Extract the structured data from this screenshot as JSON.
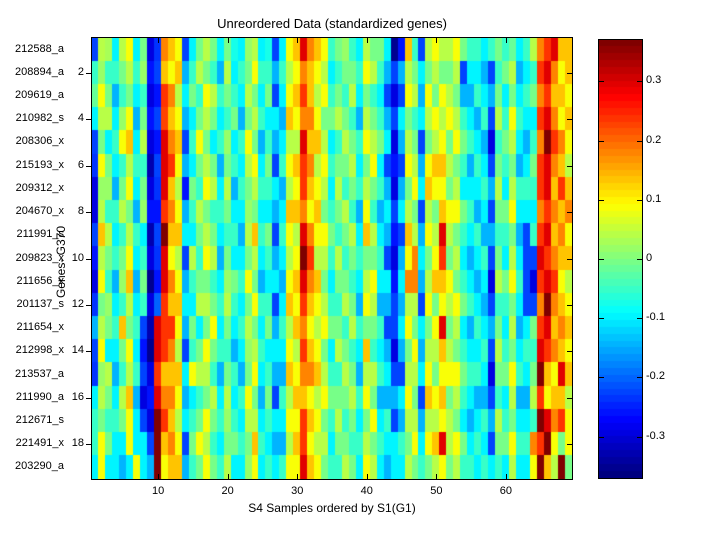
{
  "figure": {
    "background": "#ffffff"
  },
  "chart_data": {
    "type": "heatmap",
    "title": "Unreordered Data (standardized genes)",
    "xlabel": "S4 Samples ordered by S1(G1)",
    "ylabel": "Genes- G370",
    "colormap": "jet",
    "clim": [
      -0.37,
      0.37
    ],
    "n_rows": 19,
    "n_cols": 69,
    "x_ticks": [
      10,
      20,
      30,
      40,
      50,
      60
    ],
    "y_ticks": [
      2,
      4,
      6,
      8,
      10,
      12,
      14,
      16,
      18
    ],
    "colorbar_ticks": [
      0.3,
      0.2,
      0.1,
      0,
      -0.1,
      -0.2,
      -0.3
    ],
    "row_labels": [
      "212588_a",
      "208894_a",
      "209619_a",
      "210982_s",
      "208306_x",
      "215193_x",
      "209312_x",
      "204670_x",
      "211991_s",
      "209823_x",
      "211656_x",
      "201137_s",
      "211654_x",
      "212998_x",
      "213537_a",
      "211990_a",
      "212671_s",
      "221491_x",
      "203290_a"
    ],
    "values": [
      [
        -0.22,
        0.04,
        0.03,
        -0.1,
        0.04,
        0.09,
        -0.1,
        0,
        -0.3,
        -0.24,
        0.18,
        0.13,
        0.09,
        -0.22,
        -0.1,
        0,
        0.04,
        0,
        -0.1,
        0,
        -0.08,
        -0.1,
        0.02,
        0.04,
        -0.1,
        -0.08,
        -0.22,
        -0.1,
        0.09,
        0.13,
        0.3,
        0.18,
        0.13,
        0.09,
        -0.05,
        0,
        0.02,
        -0.05,
        -0.1,
        0.04,
        0,
        0,
        -0.1,
        -0.35,
        -0.26,
        0.13,
        -0.05,
        -0.22,
        0.04,
        0.09,
        0.04,
        0.04,
        0.09,
        0,
        -0.05,
        -0.05,
        -0.1,
        -0.05,
        0,
        -0.05,
        -0.02,
        -0.1,
        -0.05,
        0.04,
        0.18,
        0.24,
        0.3,
        0.13,
        0.13
      ],
      [
        -0.05,
        0.02,
        -0.05,
        -0.05,
        0,
        0.04,
        -0.05,
        0.02,
        -0.26,
        -0.22,
        0.13,
        0.09,
        0.13,
        -0.15,
        -0.05,
        0.04,
        0,
        -0.05,
        -0.15,
        0.04,
        -0.1,
        -0.05,
        0,
        0.09,
        -0.05,
        -0.05,
        -0.15,
        -0.05,
        0.04,
        0.09,
        0.18,
        0.13,
        0.09,
        0.04,
        -0.1,
        -0.05,
        0,
        0,
        -0.05,
        0.09,
        0.04,
        -0.05,
        -0.15,
        -0.22,
        -0.15,
        0.04,
        0,
        -0.1,
        0,
        0.04,
        0,
        0,
        0.04,
        -0.22,
        -0.1,
        -0.1,
        -0.15,
        -0.22,
        -0.05,
        0,
        0.04,
        -0.15,
        -0.1,
        -0.05,
        0.24,
        0.3,
        0.18,
        0.09,
        0.13
      ],
      [
        -0.02,
        0.09,
        0,
        -0.15,
        -0.05,
        0,
        -0.1,
        -0.05,
        -0.3,
        -0.26,
        0.24,
        0.18,
        0.04,
        -0.1,
        0,
        -0.05,
        0.09,
        0.04,
        -0.05,
        0,
        -0.05,
        -0.1,
        0.04,
        0,
        -0.1,
        0,
        -0.22,
        -0.1,
        0.09,
        0.13,
        0.24,
        0.13,
        0.04,
        0.09,
        -0.05,
        0,
        -0.05,
        0.04,
        -0.1,
        0,
        -0.05,
        -0.1,
        -0.22,
        -0.3,
        -0.22,
        0.09,
        0.04,
        -0.15,
        0.09,
        0,
        0.09,
        0.04,
        0,
        -0.15,
        -0.15,
        -0.05,
        -0.1,
        -0.15,
        0,
        -0.1,
        0,
        -0.1,
        -0.05,
        0,
        0.18,
        0.24,
        0.13,
        0.13,
        0.09
      ],
      [
        -0.1,
        0.04,
        0.04,
        -0.1,
        0.02,
        0.09,
        -0.15,
        0,
        -0.26,
        -0.22,
        0.22,
        0.13,
        0.09,
        -0.15,
        -0.1,
        0,
        0.04,
        0,
        -0.1,
        -0.05,
        0,
        -0.15,
        0,
        0.04,
        -0.05,
        -0.1,
        -0.1,
        -0.15,
        0.13,
        0.09,
        0.18,
        0.18,
        0.09,
        0,
        0,
        0.04,
        0,
        -0.05,
        -0.15,
        0.04,
        0,
        -0.05,
        -0.15,
        -0.22,
        -0.1,
        0,
        -0.05,
        -0.1,
        0.04,
        0.09,
        0.04,
        0.09,
        0.04,
        -0.05,
        -0.1,
        -0.15,
        -0.05,
        -0.22,
        0.04,
        -0.05,
        0.09,
        -0.05,
        -0.1,
        -0.1,
        0.24,
        0.3,
        0.18,
        0.09,
        0.13
      ],
      [
        -0.22,
        0,
        -0.1,
        -0.05,
        0.09,
        0.13,
        -0.1,
        0.04,
        -0.3,
        -0.26,
        0.3,
        0.18,
        0.13,
        -0.22,
        -0.05,
        0.09,
        0,
        -0.1,
        -0.05,
        0.02,
        -0.1,
        -0.05,
        0.09,
        0,
        -0.15,
        -0.05,
        -0.15,
        -0.1,
        0.04,
        0.04,
        0.3,
        0.13,
        0.13,
        0.04,
        -0.1,
        -0.05,
        0.04,
        0,
        -0.05,
        0.09,
        0.04,
        0,
        -0.1,
        -0.3,
        -0.15,
        0.04,
        0,
        -0.22,
        0,
        0.04,
        0.09,
        0,
        0.09,
        0,
        -0.05,
        -0.1,
        -0.15,
        -0.3,
        -0.05,
        0,
        0.04,
        -0.1,
        -0.15,
        -0.05,
        0.18,
        0.36,
        0.24,
        0.18,
        0.09
      ],
      [
        -0.24,
        0.09,
        0,
        -0.1,
        -0.05,
        0.04,
        -0.05,
        -0.05,
        -0.33,
        -0.22,
        0.3,
        0.24,
        0.09,
        -0.15,
        -0.1,
        0,
        0.04,
        0,
        -0.15,
        0,
        -0.05,
        -0.1,
        0.04,
        0.09,
        -0.1,
        0,
        -0.22,
        -0.05,
        0.09,
        0.13,
        0.24,
        0.18,
        0.04,
        0.09,
        -0.05,
        0,
        0,
        0.04,
        -0.1,
        0,
        0.09,
        -0.1,
        -0.22,
        -0.26,
        -0.22,
        0.09,
        0.04,
        -0.15,
        0.09,
        0.13,
        0.13,
        0.04,
        0,
        -0.05,
        -0.15,
        -0.05,
        -0.1,
        -0.22,
        0,
        -0.05,
        0,
        -0.15,
        -0.1,
        0,
        0.24,
        0.3,
        0.18,
        0.13,
        0.04
      ],
      [
        -0.3,
        0.02,
        0.02,
        -0.15,
        0,
        0.09,
        -0.1,
        0,
        -0.3,
        -0.24,
        0.3,
        0.13,
        0.04,
        -0.26,
        0,
        -0.05,
        0.09,
        0.04,
        -0.1,
        0.04,
        -0.15,
        -0.05,
        0,
        0.04,
        -0.05,
        -0.05,
        -0.1,
        -0.15,
        0.04,
        0.09,
        0.24,
        0.13,
        0.09,
        0.04,
        -0.1,
        0.04,
        -0.05,
        0,
        -0.05,
        0.04,
        0,
        -0.05,
        -0.15,
        -0.3,
        -0.15,
        0,
        0.09,
        -0.1,
        0.13,
        0.09,
        0.09,
        0,
        0.04,
        -0.1,
        -0.1,
        -0.1,
        -0.05,
        -0.15,
        0.04,
        -0.1,
        0.04,
        -0.05,
        -0.05,
        -0.05,
        0.24,
        0.3,
        0.13,
        0.24,
        0.13
      ],
      [
        -0.3,
        0.04,
        -0.05,
        -0.05,
        0.04,
        0,
        -0.15,
        0.02,
        -0.26,
        -0.26,
        0.24,
        0.18,
        0.09,
        -0.15,
        -0.05,
        0.04,
        0,
        -0.05,
        -0.05,
        0,
        -0.1,
        -0.1,
        0.02,
        0,
        -0.1,
        -0.1,
        -0.15,
        -0.1,
        0.13,
        0.13,
        0.18,
        0.09,
        0.13,
        0,
        -0.05,
        0,
        0.04,
        -0.05,
        -0.15,
        0.09,
        -0.05,
        -0.15,
        -0.1,
        -0.22,
        -0.1,
        0.04,
        0,
        -0.22,
        0.04,
        0,
        0.13,
        0.09,
        0.09,
        0,
        -0.05,
        -0.15,
        -0.1,
        -0.22,
        0,
        0,
        0.09,
        -0.1,
        -0.1,
        -0.1,
        0.18,
        0.24,
        0.18,
        0.13,
        0.18
      ],
      [
        -0.22,
        0.13,
        0.04,
        -0.1,
        -0.05,
        0.04,
        -0.05,
        -0.1,
        -0.33,
        -0.22,
        0.36,
        0.13,
        0.13,
        -0.1,
        -0.1,
        0,
        0.04,
        0,
        -0.1,
        -0.05,
        -0.05,
        -0.15,
        0.04,
        0.13,
        -0.05,
        0,
        -0.22,
        -0.05,
        0.09,
        0.04,
        0.3,
        0.18,
        0.09,
        0.09,
        0,
        -0.05,
        0,
        0.04,
        -0.1,
        0.13,
        0.04,
        -0.1,
        -0.15,
        -0.26,
        -0.22,
        0.13,
        0.04,
        -0.15,
        0.09,
        0.04,
        0.3,
        0.04,
        0,
        -0.05,
        -0.1,
        -0.05,
        -0.15,
        -0.15,
        -0.05,
        -0.05,
        0,
        -0.15,
        -0.22,
        -0.05,
        0.24,
        0.3,
        0.13,
        0.18,
        0.09
      ],
      [
        -0.26,
        0.04,
        0,
        -0.05,
        0,
        0.09,
        -0.1,
        -0.05,
        -0.3,
        -0.24,
        0.3,
        0.09,
        0.04,
        -0.22,
        0.04,
        -0.05,
        0.09,
        0.04,
        -0.15,
        0,
        -0.1,
        -0.1,
        0,
        0.04,
        -0.1,
        -0.05,
        -0.15,
        -0.1,
        0.04,
        0.09,
        0.36,
        0.24,
        0.04,
        0.04,
        -0.05,
        0.04,
        -0.05,
        0,
        -0.05,
        0,
        0,
        -0.05,
        -0.22,
        -0.3,
        -0.15,
        0.09,
        0.18,
        -0.1,
        0,
        0.09,
        0.24,
        0,
        0.04,
        -0.1,
        -0.15,
        -0.1,
        -0.05,
        -0.22,
        0,
        -0.1,
        0.04,
        -0.1,
        -0.22,
        -0.22,
        0.3,
        0.24,
        0.18,
        0.13,
        0.13
      ],
      [
        -0.3,
        0.09,
        -0.05,
        -0.15,
        0.02,
        0.13,
        -0.15,
        0,
        -0.35,
        -0.26,
        0.3,
        0.18,
        0.09,
        -0.15,
        -0.05,
        0,
        0,
        -0.05,
        -0.1,
        0.02,
        0,
        -0.05,
        0.09,
        0,
        -0.15,
        -0.1,
        -0.1,
        -0.15,
        0.09,
        0.13,
        0.3,
        0.18,
        0.13,
        0,
        -0.1,
        0,
        0,
        -0.05,
        -0.1,
        0.04,
        0.09,
        -0.1,
        -0.1,
        -0.26,
        -0.1,
        0.18,
        0.18,
        -0.15,
        0.04,
        0.13,
        0.13,
        0.09,
        0,
        -0.05,
        -0.1,
        -0.15,
        -0.1,
        -0.3,
        0.04,
        0,
        0.09,
        -0.05,
        -0.22,
        -0.3,
        0.24,
        0.3,
        0.24,
        0.09,
        0.04
      ],
      [
        -0.24,
        0,
        0.02,
        -0.1,
        -0.05,
        0.04,
        -0.1,
        -0.05,
        -0.3,
        -0.2,
        0.24,
        0.13,
        0.13,
        -0.1,
        -0.1,
        0.04,
        0.04,
        0,
        -0.05,
        0.04,
        -0.05,
        -0.1,
        0,
        0.09,
        -0.05,
        -0.05,
        -0.22,
        -0.1,
        0.13,
        0.09,
        0.24,
        0.13,
        0.09,
        0.04,
        -0.05,
        -0.05,
        0.04,
        0,
        -0.15,
        0.09,
        0.04,
        -0.15,
        -0.15,
        -0.22,
        -0.15,
        0.04,
        0.04,
        -0.22,
        0.09,
        0,
        0.09,
        0.04,
        0.09,
        0,
        -0.05,
        -0.1,
        -0.15,
        -0.22,
        -0.05,
        -0.05,
        0,
        -0.1,
        -0.22,
        -0.22,
        0.18,
        0.36,
        0.18,
        0.13,
        0.09
      ],
      [
        -0.15,
        0.04,
        0,
        -0.05,
        0.13,
        0,
        -0.05,
        -0.22,
        -0.33,
        0.3,
        0.24,
        0.24,
        0.09,
        -0.15,
        0,
        -0.1,
        0,
        0.09,
        -0.1,
        0,
        -0.1,
        -0.05,
        0.04,
        0,
        -0.1,
        0,
        -0.15,
        -0.05,
        0.04,
        0.13,
        0.18,
        0.09,
        0.04,
        0.09,
        0,
        0,
        -0.05,
        0.04,
        -0.05,
        0,
        0,
        -0.05,
        -0.22,
        -0.22,
        -0.1,
        0.09,
        0,
        -0.1,
        0,
        0.09,
        0.3,
        0,
        0.04,
        -0.1,
        -0.15,
        -0.05,
        -0.1,
        -0.15,
        0,
        -0.1,
        0.04,
        -0.15,
        -0.1,
        0,
        0.24,
        0.3,
        0.13,
        0.18,
        0.13
      ],
      [
        -0.22,
        0.09,
        -0.1,
        -0.1,
        0,
        0.09,
        -0.1,
        -0.26,
        -0.35,
        0.3,
        0.24,
        0.18,
        0.04,
        -0.22,
        -0.05,
        0,
        0.09,
        0,
        -0.05,
        -0.05,
        -0.15,
        -0.1,
        0.02,
        0.04,
        -0.05,
        -0.1,
        -0.1,
        -0.1,
        0.09,
        0.04,
        0.24,
        0.13,
        0.09,
        0,
        -0.1,
        0.04,
        0,
        -0.05,
        -0.1,
        0.13,
        -0.05,
        -0.1,
        -0.15,
        -0.3,
        -0.15,
        0,
        0.09,
        -0.15,
        0.04,
        0.04,
        0.13,
        0.04,
        0,
        -0.05,
        -0.1,
        -0.1,
        -0.05,
        -0.22,
        0.04,
        -0.05,
        0,
        -0.1,
        -0.05,
        -0.05,
        0.3,
        0.24,
        0.18,
        0.13,
        0.09
      ],
      [
        -0.24,
        0.02,
        0.04,
        -0.15,
        -0.05,
        0.04,
        -0.05,
        -0.22,
        -0.3,
        0.24,
        0.13,
        0.13,
        0.13,
        -0.1,
        0.09,
        0.04,
        0.04,
        -0.05,
        -0.15,
        0,
        -0.05,
        -0.15,
        0,
        0.09,
        -0.1,
        -0.05,
        -0.15,
        -0.15,
        0.13,
        0.09,
        0.18,
        0.18,
        0.13,
        0.04,
        -0.05,
        -0.05,
        0.04,
        0,
        -0.15,
        0.04,
        0.04,
        -0.05,
        -0.1,
        -0.22,
        -0.22,
        0.04,
        0.04,
        -0.1,
        0.09,
        0,
        0.09,
        0.09,
        0.09,
        0,
        -0.05,
        -0.05,
        -0.1,
        -0.3,
        0,
        0,
        0.09,
        -0.05,
        -0.1,
        0,
        0.36,
        0.13,
        0.09,
        0.3,
        0.13
      ],
      [
        -0.1,
        0.04,
        0,
        -0.1,
        0.04,
        0.13,
        -0.15,
        -0.3,
        -0.26,
        0.3,
        0.18,
        0.18,
        0.09,
        -0.15,
        -0.1,
        -0.05,
        0,
        0.04,
        -0.1,
        0.04,
        -0.1,
        -0.05,
        0.09,
        0,
        -0.15,
        0,
        -0.22,
        -0.05,
        0.04,
        0.13,
        0.13,
        0.09,
        0.04,
        0.09,
        0,
        0,
        0,
        0.04,
        -0.05,
        0.09,
        0,
        -0.15,
        -0.15,
        -0.15,
        -0.1,
        0.09,
        0,
        -0.22,
        0.13,
        0.09,
        0.13,
        0,
        0.04,
        -0.05,
        -0.1,
        -0.15,
        -0.15,
        -0.22,
        -0.05,
        -0.1,
        0.04,
        -0.15,
        -0.15,
        0.04,
        0.24,
        0.09,
        0.13,
        0.13,
        0.04
      ],
      [
        -0.05,
        0,
        -0.05,
        -0.05,
        0,
        0.09,
        -0.1,
        -0.22,
        -0.3,
        0.36,
        0.24,
        0.13,
        0.04,
        -0.1,
        -0.05,
        0,
        0.09,
        0,
        -0.05,
        0.02,
        -0.05,
        -0.1,
        0.04,
        0.04,
        -0.1,
        -0.05,
        -0.1,
        -0.1,
        0.09,
        0.09,
        0.24,
        0.13,
        0.09,
        0,
        -0.05,
        0.04,
        -0.05,
        0,
        -0.1,
        0,
        0.09,
        -0.1,
        -0.05,
        -0.22,
        -0.15,
        0.04,
        0.04,
        -0.15,
        0.04,
        0.04,
        0.09,
        0.04,
        0,
        -0.1,
        -0.15,
        -0.1,
        -0.05,
        -0.15,
        0.04,
        -0.05,
        0,
        -0.1,
        -0.1,
        -0.05,
        0.36,
        0.3,
        0.18,
        0.24,
        0.09
      ],
      [
        -0.05,
        0.09,
        0,
        -0.1,
        -0.1,
        0.09,
        -0.1,
        -0.1,
        -0.22,
        0.36,
        0.13,
        0.18,
        0.09,
        -0.22,
        0,
        0.09,
        0.04,
        -0.05,
        -0.1,
        0,
        0,
        -0.05,
        0,
        0.13,
        -0.05,
        -0.1,
        -0.15,
        -0.15,
        0.04,
        0.13,
        0.24,
        0.09,
        0.04,
        0.04,
        -0.1,
        0,
        0,
        -0.05,
        -0.05,
        0.04,
        0,
        -0.05,
        -0.1,
        -0.1,
        -0.05,
        0,
        0.09,
        -0.1,
        0.09,
        0.13,
        0.3,
        0.04,
        0.09,
        0,
        -0.1,
        -0.05,
        -0.1,
        -0.22,
        0,
        0,
        0.09,
        -0.05,
        -0.05,
        0.18,
        0.24,
        0.36,
        0.09,
        0,
        0.09
      ],
      [
        -0.1,
        0.09,
        -0.1,
        -0.1,
        -0.15,
        -0.1,
        0.09,
        -0.1,
        -0.15,
        0.36,
        0.09,
        0.13,
        0.13,
        -0.15,
        -0.05,
        0,
        0.09,
        0,
        -0.05,
        0.04,
        -0.1,
        -0.1,
        0.02,
        0.09,
        -0.1,
        -0.05,
        -0.1,
        -0.05,
        0.09,
        0.09,
        0.3,
        0.13,
        0.09,
        0,
        -0.05,
        -0.05,
        0.04,
        0,
        -0.1,
        0.09,
        0.04,
        -0.1,
        -0.15,
        -0.1,
        -0.1,
        0.04,
        0,
        -0.05,
        0,
        0.04,
        0.09,
        0,
        0.04,
        -0.05,
        -0.05,
        -0.1,
        -0.05,
        -0.1,
        -0.05,
        -0.1,
        0.04,
        -0.1,
        -0.1,
        0.09,
        0.36,
        0.13,
        0.04,
        0.36,
        0
      ]
    ]
  }
}
